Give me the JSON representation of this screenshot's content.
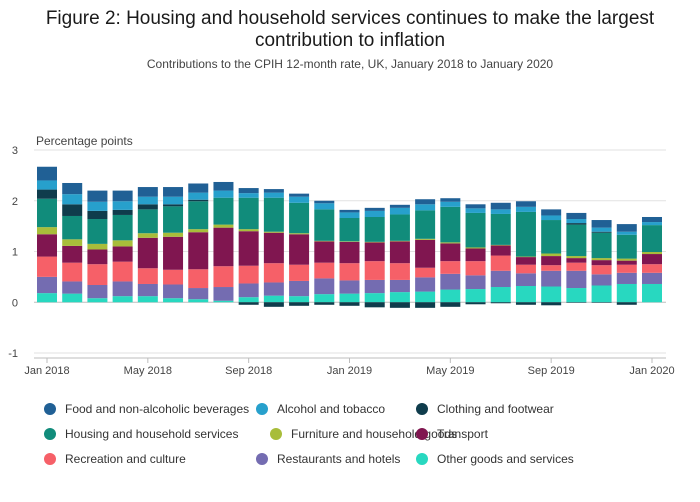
{
  "chart_data": {
    "type": "bar",
    "stacked": true,
    "title_line1": "Figure 2: Housing and household services continues to make the largest",
    "title_line2": "contribution to inflation",
    "subtitle": "Contributions to the CPIH 12-month rate, UK, January 2018 to January 2020",
    "ylabel": "Percentage points",
    "ylim": [
      -1,
      3
    ],
    "yticks": [
      "3",
      "2",
      "1",
      "0",
      "-1"
    ],
    "xtick_labels": [
      "Jan 2018",
      "May 2018",
      "Sep 2018",
      "Jan 2019",
      "May 2019",
      "Sep 2019",
      "Jan 2020"
    ],
    "categories": [
      "Jan 2018",
      "Feb 2018",
      "Mar 2018",
      "Apr 2018",
      "May 2018",
      "Jun 2018",
      "Jul 2018",
      "Aug 2018",
      "Sep 2018",
      "Oct 2018",
      "Nov 2018",
      "Dec 2018",
      "Jan 2019",
      "Feb 2019",
      "Mar 2019",
      "Apr 2019",
      "May 2019",
      "Jun 2019",
      "Jul 2019",
      "Aug 2019",
      "Sep 2019",
      "Oct 2019",
      "Nov 2019",
      "Dec 2019",
      "Jan 2020"
    ],
    "grid": true,
    "legend_position": "bottom",
    "series": [
      {
        "name": "Other goods and services",
        "color": "#28d8c0",
        "values": [
          0.18,
          0.17,
          0.08,
          0.12,
          0.12,
          0.08,
          0.06,
          0.03,
          0.1,
          0.13,
          0.12,
          0.16,
          0.17,
          0.18,
          0.2,
          0.21,
          0.25,
          0.26,
          0.3,
          0.32,
          0.31,
          0.28,
          0.33,
          0.36,
          0.36
        ]
      },
      {
        "name": "Clothing and footwear (negative)",
        "color": "#0f3c4c",
        "values": [
          0.0,
          0.0,
          0.0,
          0.0,
          0.0,
          0.0,
          0.0,
          0.0,
          -0.05,
          -0.09,
          -0.07,
          -0.05,
          -0.07,
          -0.1,
          -0.11,
          -0.11,
          -0.09,
          -0.04,
          -0.02,
          -0.05,
          -0.06,
          -0.01,
          -0.01,
          -0.05,
          0.0
        ]
      },
      {
        "name": "Restaurants and hotels",
        "color": "#746cb1",
        "values": [
          0.32,
          0.24,
          0.26,
          0.29,
          0.24,
          0.27,
          0.22,
          0.27,
          0.27,
          0.26,
          0.3,
          0.31,
          0.26,
          0.26,
          0.24,
          0.28,
          0.31,
          0.27,
          0.32,
          0.25,
          0.31,
          0.34,
          0.22,
          0.22,
          0.22
        ]
      },
      {
        "name": "Recreation and culture",
        "color": "#f66068",
        "values": [
          0.4,
          0.37,
          0.41,
          0.39,
          0.31,
          0.29,
          0.37,
          0.41,
          0.35,
          0.38,
          0.32,
          0.31,
          0.34,
          0.37,
          0.33,
          0.19,
          0.25,
          0.28,
          0.3,
          0.17,
          0.11,
          0.16,
          0.18,
          0.16,
          0.17
        ]
      },
      {
        "name": "Transport",
        "color": "#801650",
        "values": [
          0.44,
          0.33,
          0.29,
          0.3,
          0.6,
          0.65,
          0.73,
          0.76,
          0.68,
          0.6,
          0.6,
          0.42,
          0.42,
          0.37,
          0.43,
          0.55,
          0.35,
          0.25,
          0.2,
          0.15,
          0.18,
          0.09,
          0.1,
          0.08,
          0.2
        ]
      },
      {
        "name": "Furniture and household goods",
        "color": "#a8bd3a",
        "values": [
          0.14,
          0.13,
          0.11,
          0.12,
          0.09,
          0.08,
          0.06,
          0.06,
          0.04,
          0.02,
          0.02,
          0.01,
          0.01,
          0.01,
          0.01,
          0.02,
          0.02,
          0.02,
          0.01,
          0.01,
          0.05,
          0.04,
          0.04,
          0.04,
          0.04
        ]
      },
      {
        "name": "Housing and household services",
        "color": "#118c7b",
        "values": [
          0.56,
          0.46,
          0.49,
          0.5,
          0.47,
          0.52,
          0.55,
          0.53,
          0.62,
          0.67,
          0.6,
          0.62,
          0.46,
          0.49,
          0.52,
          0.56,
          0.7,
          0.68,
          0.61,
          0.88,
          0.66,
          0.62,
          0.5,
          0.47,
          0.53
        ]
      },
      {
        "name": "Clothing and footwear",
        "color": "#0f3c4c",
        "values": [
          0.18,
          0.23,
          0.16,
          0.1,
          0.1,
          0.04,
          0.03,
          0.0,
          0.0,
          0.0,
          0.0,
          0.0,
          0.0,
          0.0,
          0.0,
          0.0,
          0.0,
          0.0,
          0.0,
          0.0,
          0.0,
          0.03,
          0.02,
          0.0,
          0.0
        ]
      },
      {
        "name": "Alcohol and tobacco",
        "color": "#27a0cc",
        "values": [
          0.18,
          0.2,
          0.18,
          0.17,
          0.15,
          0.15,
          0.14,
          0.14,
          0.09,
          0.1,
          0.12,
          0.12,
          0.11,
          0.12,
          0.13,
          0.12,
          0.1,
          0.09,
          0.09,
          0.1,
          0.09,
          0.08,
          0.08,
          0.06,
          0.06
        ]
      },
      {
        "name": "Food and non-alcoholic beverages",
        "color": "#206095",
        "values": [
          0.27,
          0.22,
          0.22,
          0.21,
          0.19,
          0.19,
          0.18,
          0.17,
          0.1,
          0.07,
          0.06,
          0.05,
          0.05,
          0.06,
          0.06,
          0.1,
          0.07,
          0.08,
          0.13,
          0.11,
          0.12,
          0.12,
          0.15,
          0.15,
          0.1
        ]
      }
    ]
  },
  "legend": [
    {
      "label": "Food and non-alcoholic beverages",
      "color": "#206095"
    },
    {
      "label": "Alcohol and tobacco",
      "color": "#27a0cc"
    },
    {
      "label": "Clothing and footwear",
      "color": "#0f3c4c"
    },
    {
      "label": "Housing and household services",
      "color": "#118c7b"
    },
    {
      "label": "Furniture and household goods",
      "color": "#a8bd3a"
    },
    {
      "label": "Transport",
      "color": "#801650"
    },
    {
      "label": "Recreation and culture",
      "color": "#f66068"
    },
    {
      "label": "Restaurants and hotels",
      "color": "#746cb1"
    },
    {
      "label": "Other goods and services",
      "color": "#28d8c0"
    }
  ]
}
